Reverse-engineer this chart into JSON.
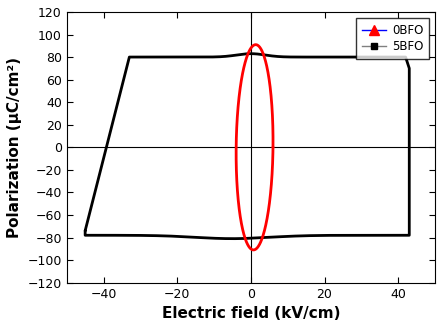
{
  "title": "",
  "xlabel": "Electric field (kV/cm)",
  "ylabel": "Polarization (μC/cm²)",
  "xlim": [
    -50,
    50
  ],
  "ylim": [
    -120,
    120
  ],
  "xticks": [
    -40,
    -20,
    0,
    20,
    40
  ],
  "yticks": [
    -120,
    -100,
    -80,
    -60,
    -40,
    -20,
    0,
    20,
    40,
    60,
    80,
    100,
    120
  ],
  "bfo5_color": "black",
  "bfo0_color": "red",
  "bfo5_linewidth": 2.0,
  "bfo0_linewidth": 2.0,
  "legend_labels": [
    "0BFO",
    "5BFO"
  ],
  "figsize": [
    4.42,
    3.28
  ],
  "dpi": 100,
  "bg_color": "white"
}
